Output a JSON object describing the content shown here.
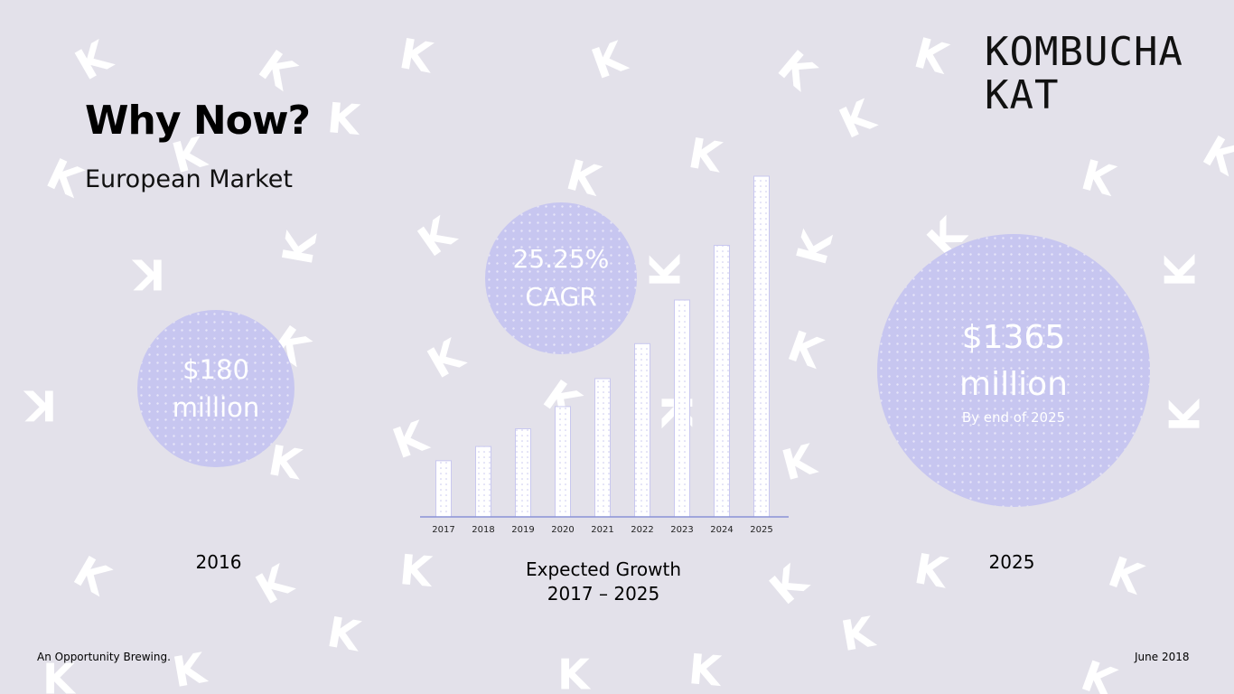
{
  "brand": {
    "line1": "KOMBUCHA",
    "line2": "KAT",
    "pattern_letter": "K",
    "pattern_color": "#ffffff",
    "background": "#e3e1ea"
  },
  "title": "Why Now?",
  "subtitle": "European Market",
  "left_stat": {
    "value": "$180",
    "unit": "million",
    "caption": "2016"
  },
  "center_stat": {
    "value": "25.25%",
    "unit": "CAGR",
    "caption_line1": "Expected Growth",
    "caption_line2": "2017 – 2025"
  },
  "right_stat": {
    "value": "$1365",
    "unit": "million",
    "note": "By end of 2025",
    "caption": "2025"
  },
  "footer": {
    "left": "An Opportunity Brewing.",
    "right": "June 2018"
  },
  "colors": {
    "bubble": "#c7c6f0",
    "bar_outline": "#c9c8ef",
    "axis": "#8a93d6"
  },
  "chart_data": {
    "type": "bar",
    "categories": [
      "2017",
      "2018",
      "2019",
      "2020",
      "2021",
      "2022",
      "2023",
      "2024",
      "2025"
    ],
    "values": [
      225,
      282,
      353,
      442,
      554,
      694,
      869,
      1088,
      1365
    ],
    "ylim": [
      0,
      1365
    ],
    "grid": false,
    "title": "",
    "xlabel": "",
    "ylabel": ""
  }
}
